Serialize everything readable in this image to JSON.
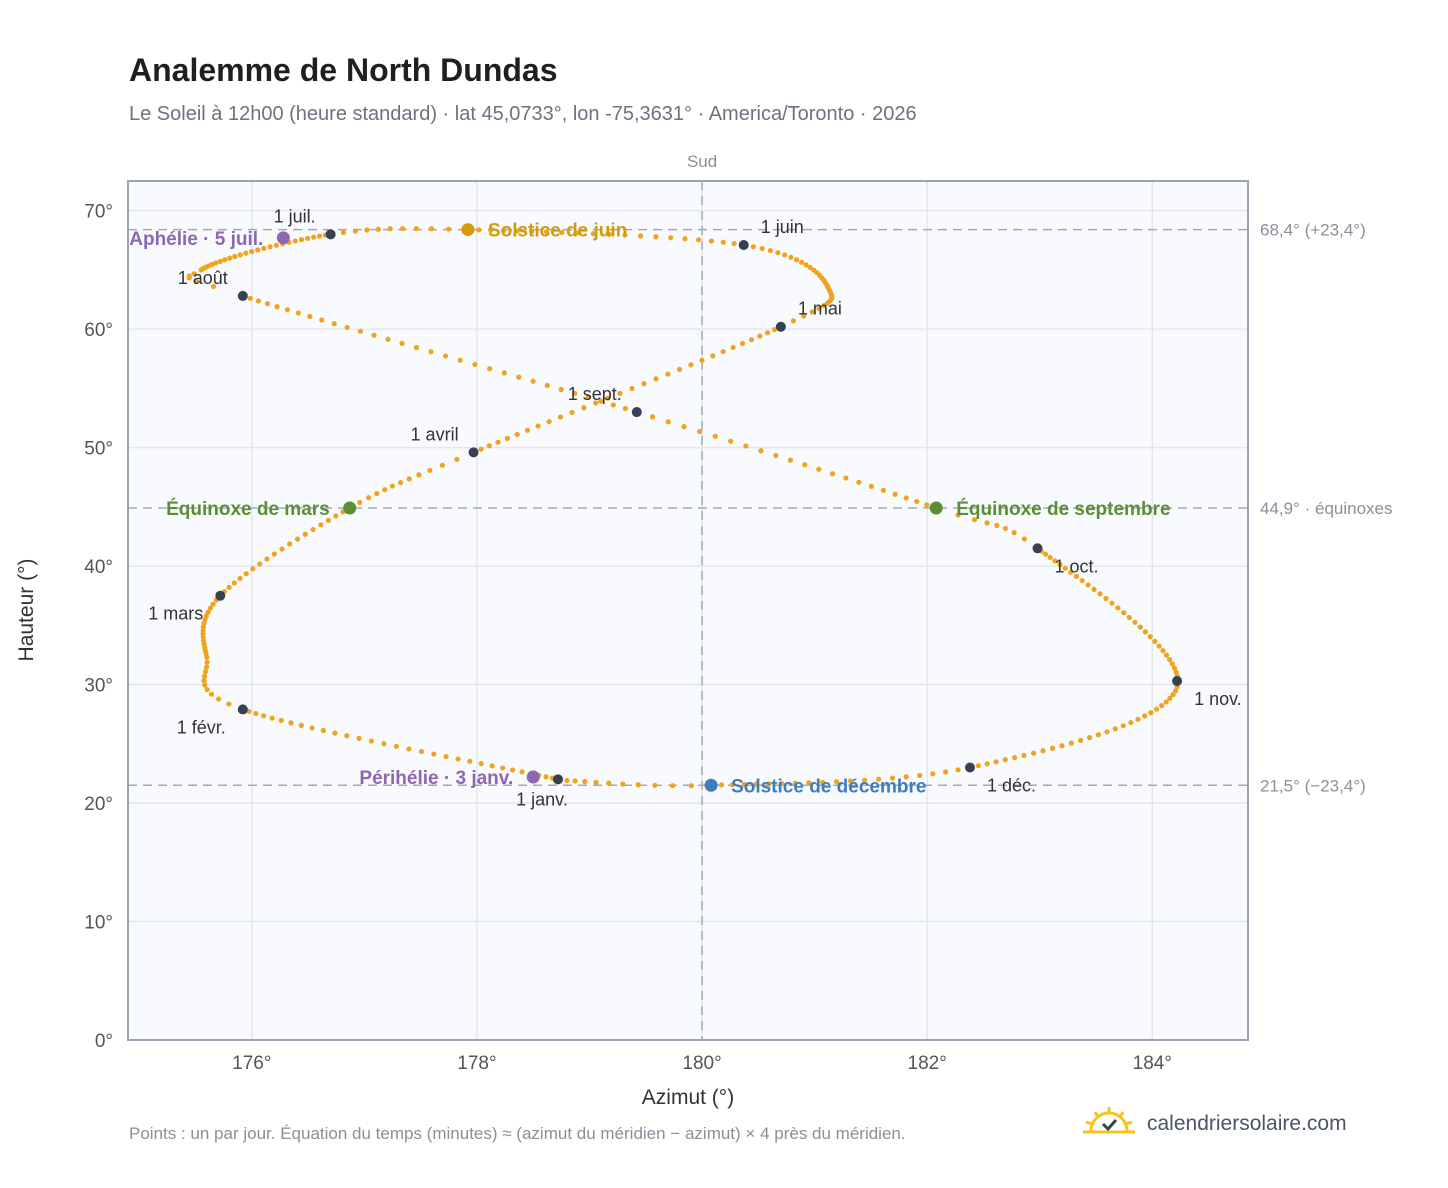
{
  "title": "Analemme de North Dundas",
  "subtitle": "Le Soleil à 12h00 (heure standard) · lat 45,0733°, lon -75,3631° · America/Toronto · 2026",
  "footnote": "Points : un par jour. Équation du temps (minutes) ≈ (azimut du méridien − azimut) × 4 près du méridien.",
  "brand": {
    "name": "calendriersolaire.com",
    "icon": "sun-check-icon"
  },
  "colors": {
    "curve": "#f0a31f",
    "month_marker": "#374151",
    "solstice_june": "#d39a0c",
    "solstice_december": "#3d7dbf",
    "equinox": "#5a8f34",
    "aphelion_perihelion": "#8e67b0",
    "plot_bg": "#f8fafd",
    "grid": "#e3e7ec",
    "reference_line": "#a3aab4"
  },
  "chart_data": {
    "type": "scatter",
    "xlabel": "Azimut (°)",
    "ylabel": "Hauteur (°)",
    "top_axis_label": "Sud",
    "xlim": [
      174.9,
      184.85
    ],
    "ylim": [
      0,
      72.5
    ],
    "x_ticks": [
      176,
      178,
      180,
      182,
      184
    ],
    "x_tick_labels": [
      "176°",
      "178°",
      "180°",
      "182°",
      "184°"
    ],
    "y_ticks": [
      0,
      10,
      20,
      30,
      40,
      50,
      60,
      70
    ],
    "y_tick_labels": [
      "0°",
      "10°",
      "20°",
      "30°",
      "40°",
      "50°",
      "60°",
      "70°"
    ],
    "grid": true,
    "meridian_azimuth": 180,
    "reference_lines": [
      {
        "y": 68.4,
        "label": "68,4° (+23,4°)"
      },
      {
        "y": 44.9,
        "label": "44,9° · équinoxes"
      },
      {
        "y": 21.5,
        "label": "21,5° (−23,4°)"
      }
    ],
    "daily_points": {
      "series_color": "curve",
      "knots": [
        {
          "date": "01-01",
          "x": 178.72,
          "y": 22.0
        },
        {
          "date": "02-01",
          "x": 175.92,
          "y": 27.9
        },
        {
          "date": "02-12",
          "x": 175.6,
          "y": 32.3
        },
        {
          "date": "03-01",
          "x": 175.72,
          "y": 37.5
        },
        {
          "date": "03-20",
          "x": 176.87,
          "y": 44.9
        },
        {
          "date": "04-01",
          "x": 177.97,
          "y": 49.6
        },
        {
          "date": "05-01",
          "x": 180.7,
          "y": 60.2
        },
        {
          "date": "05-14",
          "x": 181.12,
          "y": 63.5
        },
        {
          "date": "06-01",
          "x": 180.37,
          "y": 67.1
        },
        {
          "date": "06-21",
          "x": 177.92,
          "y": 68.4
        },
        {
          "date": "07-01",
          "x": 176.7,
          "y": 68.0
        },
        {
          "date": "07-26",
          "x": 175.55,
          "y": 65.0
        },
        {
          "date": "08-01",
          "x": 175.92,
          "y": 62.8
        },
        {
          "date": "09-01",
          "x": 179.42,
          "y": 53.0
        },
        {
          "date": "09-23",
          "x": 182.08,
          "y": 44.9
        },
        {
          "date": "10-01",
          "x": 182.98,
          "y": 41.5
        },
        {
          "date": "11-03",
          "x": 184.22,
          "y": 29.8
        },
        {
          "date": "12-01",
          "x": 182.38,
          "y": 23.0
        },
        {
          "date": "12-21",
          "x": 180.08,
          "y": 21.5
        },
        {
          "date": "12-31",
          "x": 178.8,
          "y": 21.9
        }
      ]
    },
    "month_markers": [
      {
        "label": "1 janv.",
        "x": 178.72,
        "y": 22.0,
        "anchor": "bottom"
      },
      {
        "label": "1 févr.",
        "x": 175.92,
        "y": 27.9,
        "anchor": "bottom-left"
      },
      {
        "label": "1 mars",
        "x": 175.72,
        "y": 37.5,
        "anchor": "bottom-left"
      },
      {
        "label": "1 avril",
        "x": 177.97,
        "y": 49.6,
        "anchor": "top-left"
      },
      {
        "label": "1 mai",
        "x": 180.7,
        "y": 60.2,
        "anchor": "top-right"
      },
      {
        "label": "1 juin",
        "x": 180.37,
        "y": 67.1,
        "anchor": "top-right"
      },
      {
        "label": "1 juil.",
        "x": 176.7,
        "y": 68.0,
        "anchor": "top-left"
      },
      {
        "label": "1 août",
        "x": 175.92,
        "y": 62.8,
        "anchor": "top-left"
      },
      {
        "label": "1 sept.",
        "x": 179.42,
        "y": 53.0,
        "anchor": "top-left"
      },
      {
        "label": "1 oct.",
        "x": 182.98,
        "y": 41.5,
        "anchor": "bottom-right"
      },
      {
        "label": "1 nov.",
        "x": 184.22,
        "y": 30.3,
        "anchor": "bottom-right"
      },
      {
        "label": "1 déc.",
        "x": 182.38,
        "y": 23.0,
        "anchor": "bottom-right"
      }
    ],
    "events": [
      {
        "label": "Solstice de juin",
        "x": 177.92,
        "y": 68.4,
        "color": "solstice_june",
        "side": "right"
      },
      {
        "label": "Solstice de décembre",
        "x": 180.08,
        "y": 21.5,
        "color": "solstice_december",
        "side": "right"
      },
      {
        "label": "Équinoxe de mars",
        "x": 176.87,
        "y": 44.9,
        "color": "equinox",
        "side": "left"
      },
      {
        "label": "Équinoxe de septembre",
        "x": 182.08,
        "y": 44.9,
        "color": "equinox",
        "side": "right"
      },
      {
        "label": "Aphélie · 5 juil.",
        "x": 176.28,
        "y": 67.7,
        "color": "aphelion_perihelion",
        "side": "left"
      },
      {
        "label": "Périhélie · 3 janv.",
        "x": 178.5,
        "y": 22.2,
        "color": "aphelion_perihelion",
        "side": "left"
      }
    ]
  }
}
